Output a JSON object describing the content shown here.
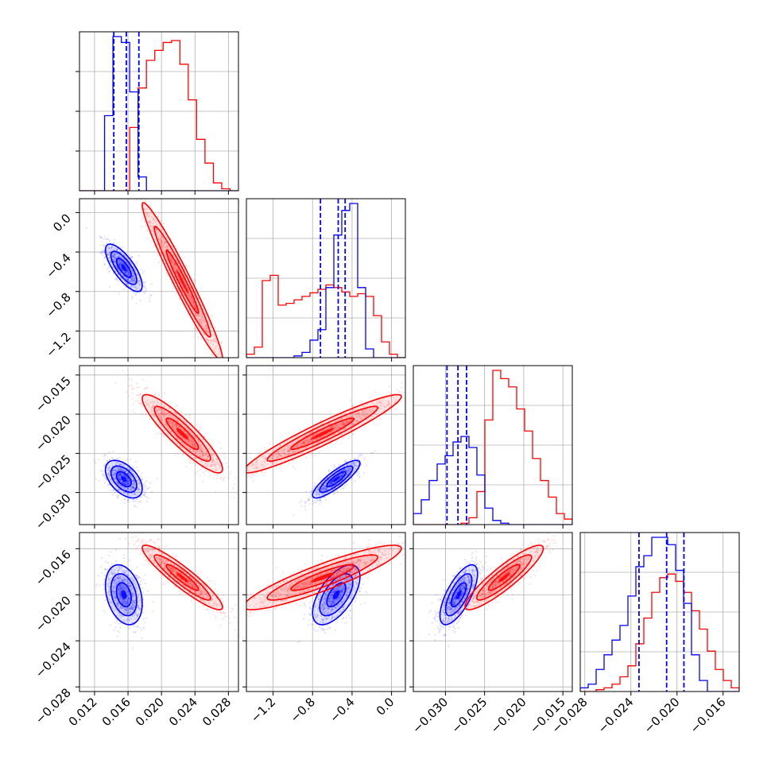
{
  "colors": {
    "series_a": "#0000ff",
    "series_b": "#ff0000",
    "grid": "#b0b0b0",
    "frame": "#000000"
  },
  "parameters": [
    {
      "index": 0,
      "range": [
        0.0102,
        0.0292
      ],
      "ticks": [
        0.012,
        0.016,
        0.02,
        0.024,
        0.028
      ],
      "tick_labels": [
        "0.012",
        "0.016",
        "0.020",
        "0.024",
        "0.028"
      ]
    },
    {
      "index": 1,
      "range": [
        -1.47,
        0.14
      ],
      "ticks": [
        -1.2,
        -0.8,
        -0.4,
        0.0
      ],
      "tick_labels": [
        "−1.2",
        "−0.8",
        "−0.4",
        "0.0"
      ]
    },
    {
      "index": 2,
      "range": [
        -0.0341,
        -0.0138
      ],
      "ticks": [
        -0.03,
        -0.025,
        -0.02,
        -0.015
      ],
      "tick_labels": [
        "−0.030",
        "−0.025",
        "−0.020",
        "−0.015"
      ]
    },
    {
      "index": 3,
      "range": [
        -0.0284,
        -0.0146
      ],
      "ticks": [
        -0.028,
        -0.024,
        -0.02,
        -0.016
      ],
      "tick_labels": [
        "−0.028",
        "−0.024",
        "−0.020",
        "−0.016"
      ]
    }
  ],
  "chart_data": {
    "type": "corner",
    "title": "",
    "grid": true,
    "legend": "none",
    "series": [
      {
        "color": "#0000ff",
        "means": [
          0.0155,
          -0.56,
          -0.0283,
          -0.02
        ],
        "sigmas": [
          0.0011,
          0.12,
          0.0012,
          0.0013
        ],
        "corr": [
          [
            0,
            1,
            -0.75
          ],
          [
            0,
            2,
            -0.5
          ],
          [
            0,
            3,
            -0.3
          ],
          [
            1,
            2,
            0.85
          ],
          [
            1,
            3,
            0.6
          ],
          [
            2,
            3,
            0.7
          ]
        ],
        "quantiles": [
          [
            0.0143,
            0.0158,
            0.0173
          ],
          [
            -0.72,
            -0.54,
            -0.47
          ],
          [
            -0.0298,
            -0.0284,
            -0.0273
          ],
          [
            -0.0233,
            -0.0209,
            -0.0194
          ]
        ],
        "histograms": [
          [
            0,
            0,
            0,
            190,
            390,
            375,
            250,
            35,
            0,
            0,
            0,
            0,
            0,
            0,
            0,
            0,
            0,
            0,
            0
          ],
          [
            0,
            0,
            0,
            0,
            0,
            0,
            10,
            30,
            100,
            160,
            400,
            700,
            840,
            880,
            400,
            50,
            0,
            0,
            0,
            0
          ],
          [
            40,
            90,
            160,
            220,
            250,
            300,
            320,
            280,
            180,
            60,
            15,
            5,
            0,
            0,
            0,
            0,
            0,
            0,
            0,
            0
          ],
          [
            10,
            20,
            60,
            100,
            140,
            180,
            260,
            340,
            370,
            420,
            420,
            400,
            330,
            240,
            100,
            30,
            0,
            0,
            0,
            0
          ]
        ]
      },
      {
        "color": "#ff0000",
        "means": [
          0.0225,
          -0.7,
          -0.0225,
          -0.0185
        ],
        "sigmas": [
          0.0024,
          0.4,
          0.0025,
          0.0014
        ],
        "corr": [
          [
            0,
            1,
            -0.97
          ],
          [
            0,
            2,
            -0.9
          ],
          [
            0,
            3,
            -0.92
          ],
          [
            1,
            2,
            0.95
          ],
          [
            1,
            3,
            0.9
          ],
          [
            2,
            3,
            0.9
          ]
        ],
        "quantiles": [],
        "histograms": [
          [
            0,
            0,
            0,
            0,
            0,
            0,
            160,
            260,
            330,
            355,
            375,
            380,
            320,
            230,
            130,
            70,
            20,
            5,
            0
          ],
          [
            20,
            60,
            440,
            470,
            300,
            310,
            330,
            350,
            370,
            390,
            415,
            400,
            375,
            350,
            365,
            350,
            240,
            90,
            20,
            0
          ],
          [
            0,
            0,
            0,
            0,
            0,
            0,
            5,
            25,
            120,
            380,
            560,
            530,
            500,
            420,
            340,
            240,
            160,
            100,
            40,
            20
          ],
          [
            0,
            0,
            5,
            10,
            20,
            40,
            70,
            130,
            200,
            270,
            310,
            320,
            300,
            270,
            220,
            170,
            110,
            60,
            30,
            10
          ]
        ]
      }
    ]
  }
}
